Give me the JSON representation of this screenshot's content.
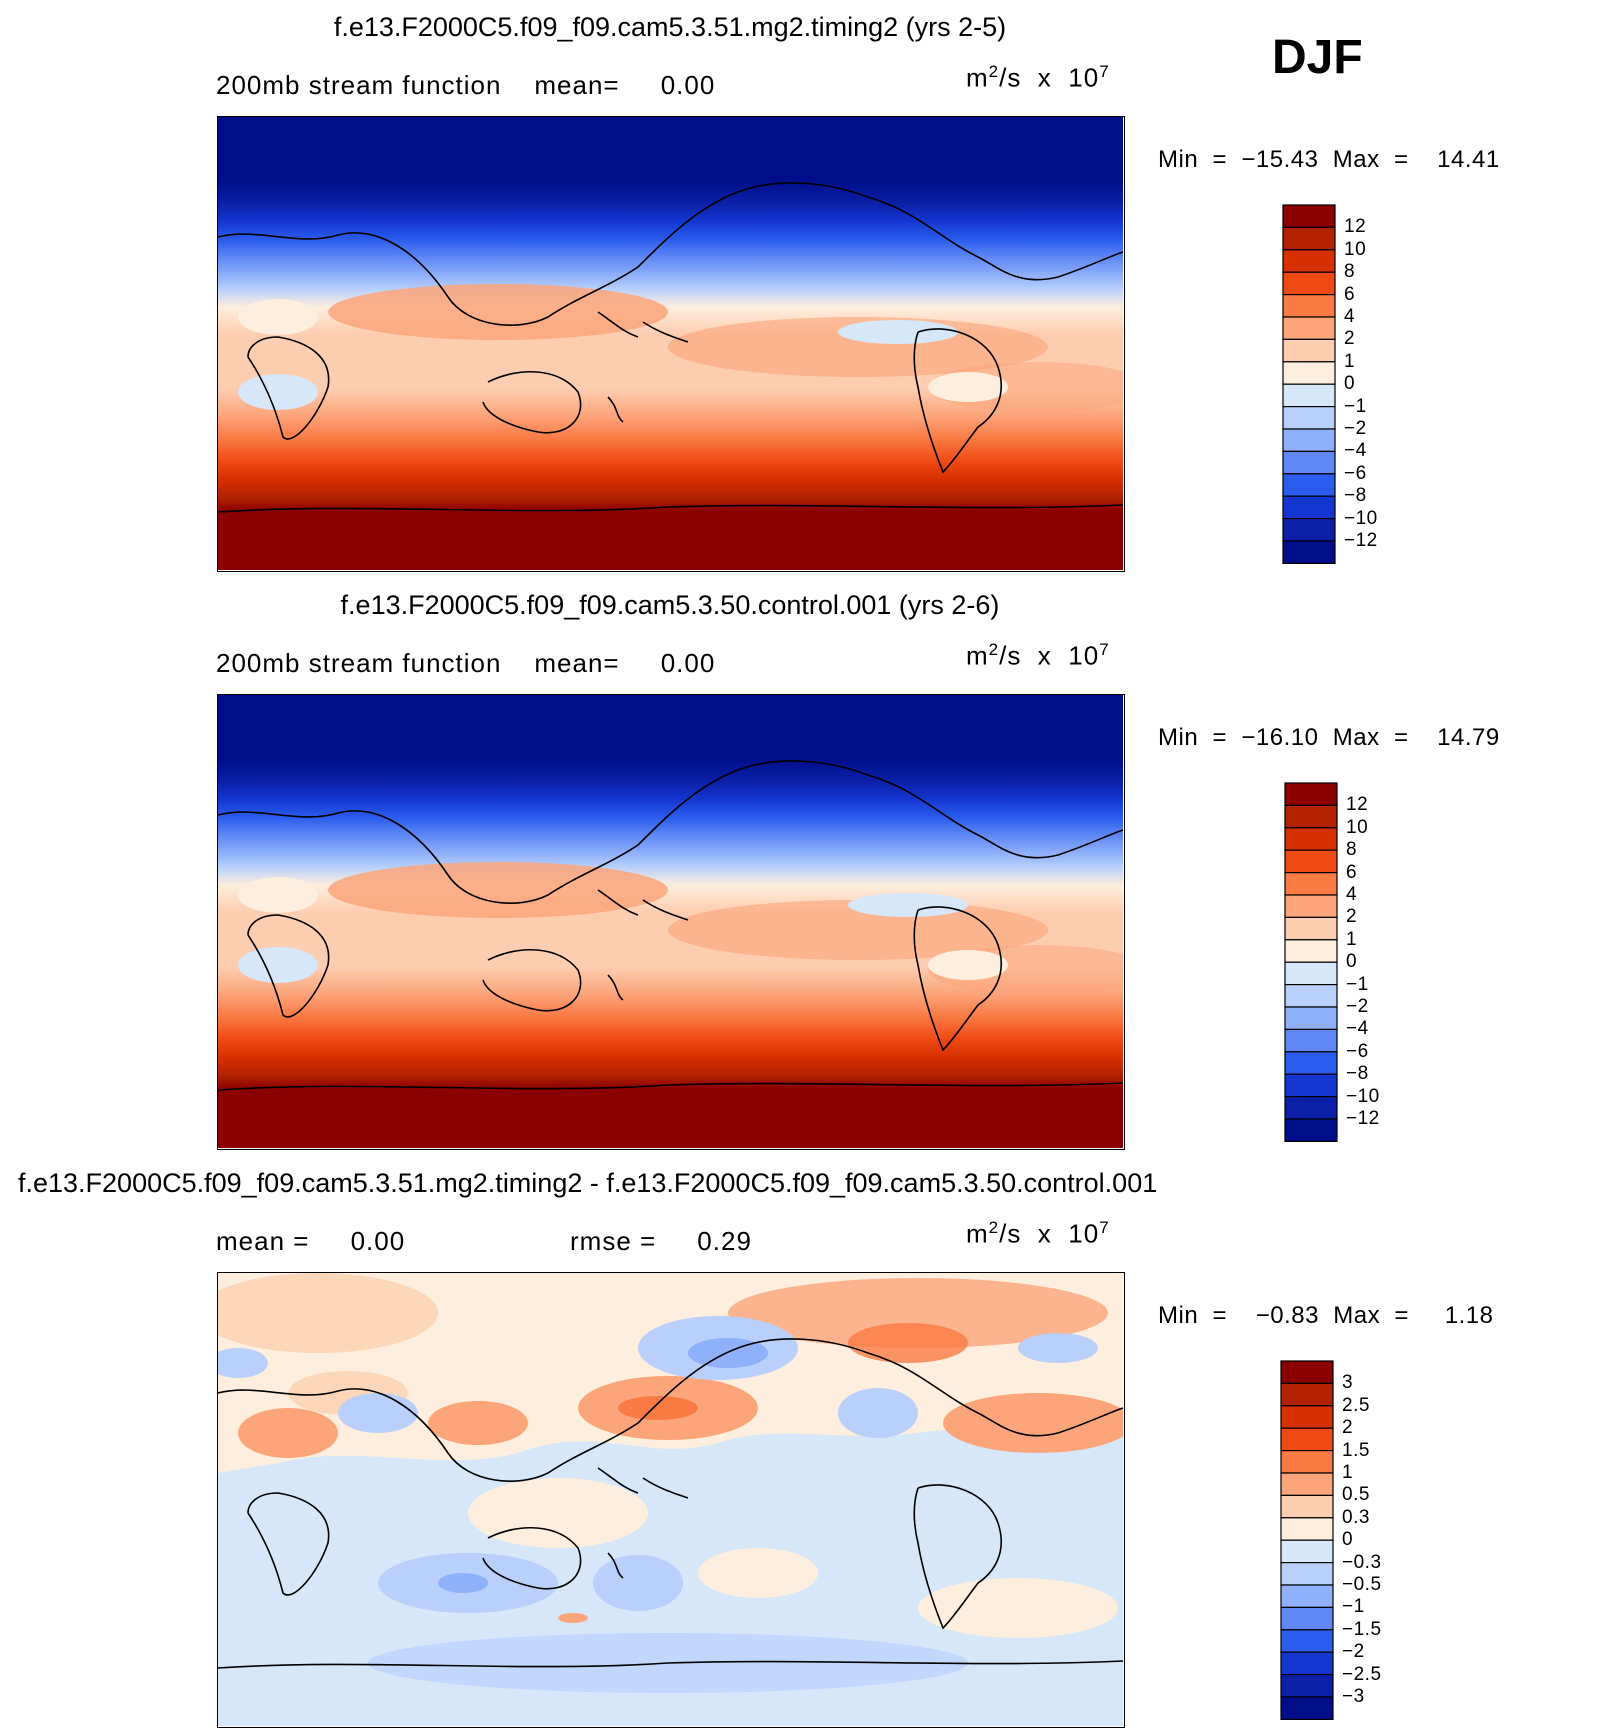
{
  "season_label": "DJF",
  "chart_data": [
    {
      "type": "contour_map",
      "title": "f.e13.F2000C5.f09_f09.cam5.3.51.mg2.timing2 (yrs 2-5)",
      "subtitle": "200mb stream function    mean=     0.00",
      "units_base": "m",
      "units_sup": "2",
      "units_mid": "/s  x  10",
      "units_exp": "7",
      "min_max": "Min  =  −15.43  Max  =    14.41",
      "field_min": -15.43,
      "field_max": 14.41,
      "mean": 0.0,
      "levels": [
        "12",
        "10",
        "8",
        "6",
        "4",
        "2",
        "1",
        "0",
        "−1",
        "−2",
        "−4",
        "−6",
        "−8",
        "−10",
        "−12"
      ],
      "colors": [
        "#8b0000",
        "#b22200",
        "#d63000",
        "#f04a14",
        "#fa7a44",
        "#fca47a",
        "#fdcdb0",
        "#fdeedd",
        "#d6e7fa",
        "#b8d0fb",
        "#8fb0fb",
        "#5f88f5",
        "#2a5ced",
        "#1436d0",
        "#0b1fa7",
        "#000e8a"
      ]
    },
    {
      "type": "contour_map",
      "title": "f.e13.F2000C5.f09_f09.cam5.3.50.control.001 (yrs 2-6)",
      "subtitle": "200mb stream function    mean=     0.00",
      "units_base": "m",
      "units_sup": "2",
      "units_mid": "/s  x  10",
      "units_exp": "7",
      "min_max": "Min  =  −16.10  Max  =    14.79",
      "field_min": -16.1,
      "field_max": 14.79,
      "mean": 0.0,
      "levels": [
        "12",
        "10",
        "8",
        "6",
        "4",
        "2",
        "1",
        "0",
        "−1",
        "−2",
        "−4",
        "−6",
        "−8",
        "−10",
        "−12"
      ],
      "colors": [
        "#8b0000",
        "#b22200",
        "#d63000",
        "#f04a14",
        "#fa7a44",
        "#fca47a",
        "#fdcdb0",
        "#fdeedd",
        "#d6e7fa",
        "#b8d0fb",
        "#8fb0fb",
        "#5f88f5",
        "#2a5ced",
        "#1436d0",
        "#0b1fa7",
        "#000e8a"
      ]
    },
    {
      "type": "contour_map",
      "title": "f.e13.F2000C5.f09_f09.cam5.3.51.mg2.timing2 - f.e13.F2000C5.f09_f09.cam5.3.50.control.001",
      "subtitle_mean": "mean =     0.00",
      "subtitle_rmse": "rmse =     0.29",
      "units_base": "m",
      "units_sup": "2",
      "units_mid": "/s  x  10",
      "units_exp": "7",
      "min_max": "Min  =    −0.83  Max  =     1.18",
      "field_min": -0.83,
      "field_max": 1.18,
      "mean": 0.0,
      "rmse": 0.29,
      "levels": [
        "3",
        "2.5",
        "2",
        "1.5",
        "1",
        "0.5",
        "0.3",
        "0",
        "−0.3",
        "−0.5",
        "−1",
        "−1.5",
        "−2",
        "−2.5",
        "−3"
      ],
      "colors": [
        "#8b0000",
        "#b22200",
        "#d63000",
        "#f04a14",
        "#fa7a44",
        "#fca47a",
        "#fdcdb0",
        "#fdeedd",
        "#d6e7fa",
        "#b8d0fb",
        "#8fb0fb",
        "#5f88f5",
        "#2a5ced",
        "#1436d0",
        "#0b1fa7",
        "#000e8a"
      ]
    }
  ]
}
